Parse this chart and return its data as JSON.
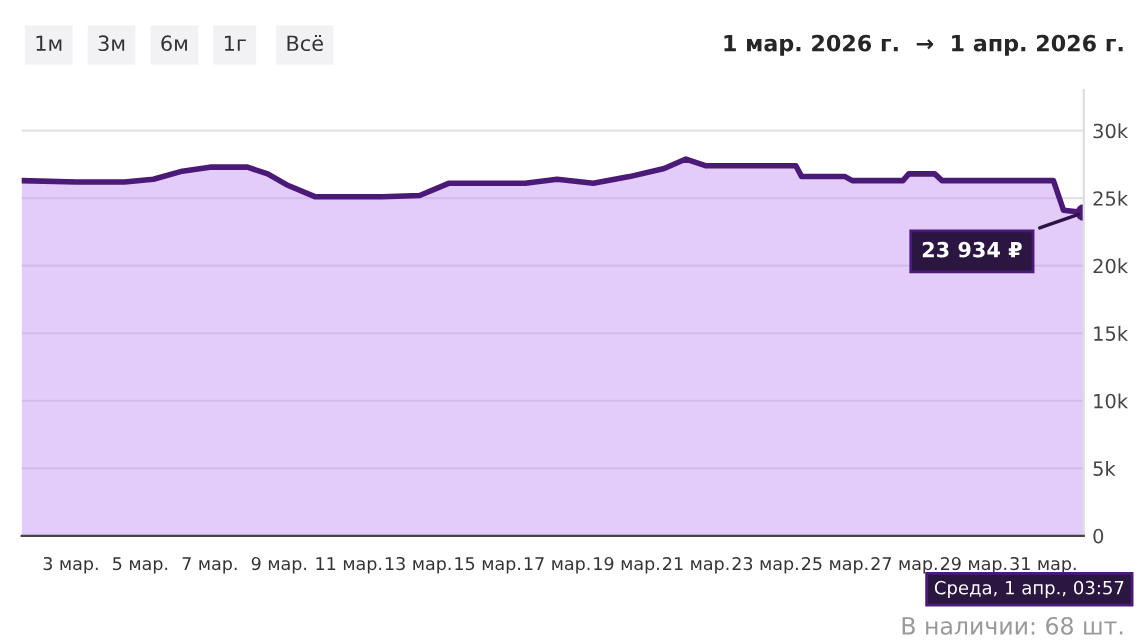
{
  "chart_data": {
    "type": "area",
    "title": "1 мар. 2026 г.  →  1 апр. 2026 г.",
    "x": [
      "2026-03-01T14:00",
      "2026-03-03T04:00",
      "2026-03-04T13:00",
      "2026-03-05T09:00",
      "2026-03-06T05:00",
      "2026-03-07T00:00",
      "2026-03-08T02:00",
      "2026-03-08T16:00",
      "2026-03-09T05:00",
      "2026-03-10T01:00",
      "2026-03-11T23:00",
      "2026-03-13T01:00",
      "2026-03-13T21:00",
      "2026-03-16T02:00",
      "2026-03-17T00:00",
      "2026-03-18T01:00",
      "2026-03-19T02:00",
      "2026-03-20T02:00",
      "2026-03-20T17:00",
      "2026-03-21T07:00",
      "2026-03-23T21:00",
      "2026-03-24T01:00",
      "2026-03-25T07:00",
      "2026-03-25T12:00",
      "2026-03-26T23:00",
      "2026-03-27T03:00",
      "2026-03-27T21:00",
      "2026-03-28T02:00",
      "2026-03-31T07:00",
      "2026-03-31T14:00",
      "2026-04-01T03:57"
    ],
    "series": [
      {
        "color": "#4b1a78",
        "values": [
          26300,
          26200,
          26200,
          26400,
          27000,
          27300,
          27300,
          26800,
          26000,
          25100,
          25100,
          25200,
          26100,
          26100,
          26400,
          26100,
          26600,
          27200,
          27900,
          27400,
          27400,
          26600,
          26600,
          26300,
          26300,
          26800,
          26800,
          26300,
          26300,
          24100,
          23934
        ]
      }
    ],
    "xlim": [
      "2026-03-01T14:00",
      "2026-04-01T03:57"
    ],
    "xticks": [
      {
        "value": "2026-03-03",
        "label": "3 мар."
      },
      {
        "value": "2026-03-05",
        "label": "5 мар."
      },
      {
        "value": "2026-03-07",
        "label": "7 мар."
      },
      {
        "value": "2026-03-09",
        "label": "9 мар."
      },
      {
        "value": "2026-03-11",
        "label": "11 мар."
      },
      {
        "value": "2026-03-13",
        "label": "13 мар."
      },
      {
        "value": "2026-03-15",
        "label": "15 мар."
      },
      {
        "value": "2026-03-17",
        "label": "17 мар."
      },
      {
        "value": "2026-03-19",
        "label": "19 мар."
      },
      {
        "value": "2026-03-21",
        "label": "21 мар."
      },
      {
        "value": "2026-03-23",
        "label": "23 мар."
      },
      {
        "value": "2026-03-25",
        "label": "25 мар."
      },
      {
        "value": "2026-03-27",
        "label": "27 мар."
      },
      {
        "value": "2026-03-29",
        "label": "29 мар."
      },
      {
        "value": "2026-03-31",
        "label": "31 мар."
      }
    ],
    "ylim": [
      0,
      33000
    ],
    "yticks": [
      0,
      {
        "value": 5000,
        "label": "5k"
      },
      {
        "value": 10000,
        "label": "10k"
      },
      {
        "value": 15000,
        "label": "15k"
      },
      {
        "value": 20000,
        "label": "20k"
      },
      {
        "value": 25000,
        "label": "25k"
      },
      {
        "value": 30000,
        "label": "30k"
      }
    ],
    "grid": "y",
    "annotations": [
      "1м",
      "3м",
      "6м",
      "1г",
      "Всё",
      {
        "text": "23 934 ₽",
        "x": "2026-04-01T03:57",
        "y": 23934
      },
      "Среда, 1 апр., 03:57",
      "В наличии: 68 шт."
    ]
  }
}
